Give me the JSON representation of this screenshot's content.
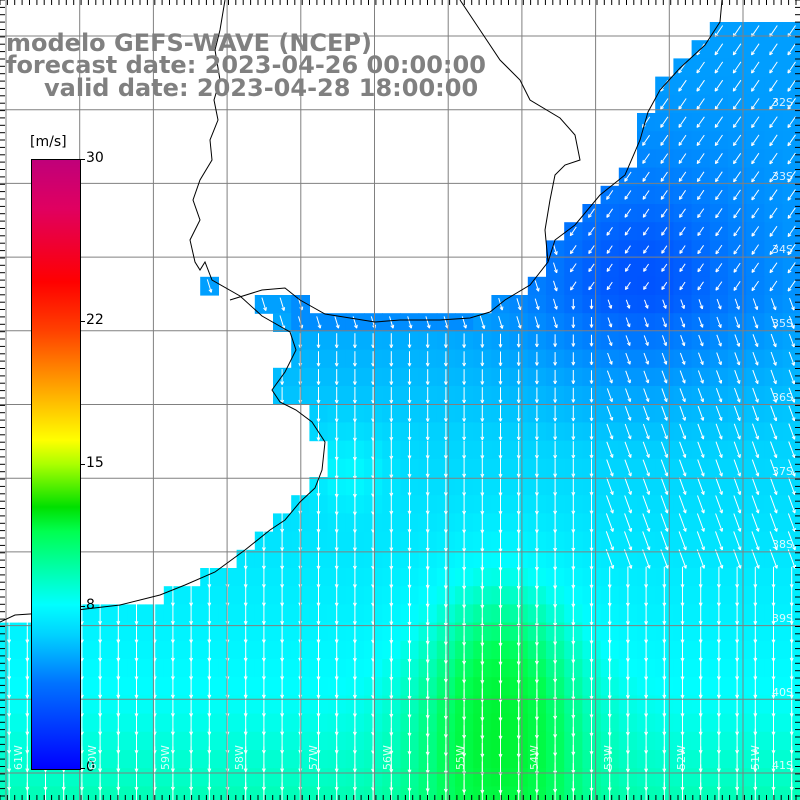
{
  "title": {
    "line1": "modelo GEFS-WAVE (NCEP)",
    "line2": "forecast date: 2023-04-26 00:00:00",
    "line3": "valid date: 2023-04-28 18:00:00"
  },
  "colorbar": {
    "unit": "[m/s]",
    "min": 0,
    "max": 30,
    "labels": [
      "30",
      "22",
      "15",
      "8",
      "0"
    ],
    "label_values": [
      30,
      22,
      15,
      8,
      0
    ],
    "colors": [
      "#0000ff",
      "#0072ff",
      "#00d2ff",
      "#00ffff",
      "#00ff50",
      "#00e000",
      "#aaff00",
      "#ffff00",
      "#ffa000",
      "#ff4000",
      "#ff0000",
      "#c0007a"
    ]
  },
  "map": {
    "region": "Uruguay / Rio de la Plata / SW South Atlantic",
    "lat_labels": [
      "32S",
      "33S",
      "34S",
      "35S",
      "36S",
      "37S",
      "38S",
      "39S",
      "40S",
      "41S"
    ],
    "lon_labels": [
      "61W",
      "60W",
      "59W",
      "58W",
      "57W",
      "56W",
      "55W",
      "54W",
      "53W",
      "52W",
      "51W"
    ],
    "grid_color": "#808080",
    "coast_color": "#000000",
    "arrow_color": "#ffffff"
  }
}
